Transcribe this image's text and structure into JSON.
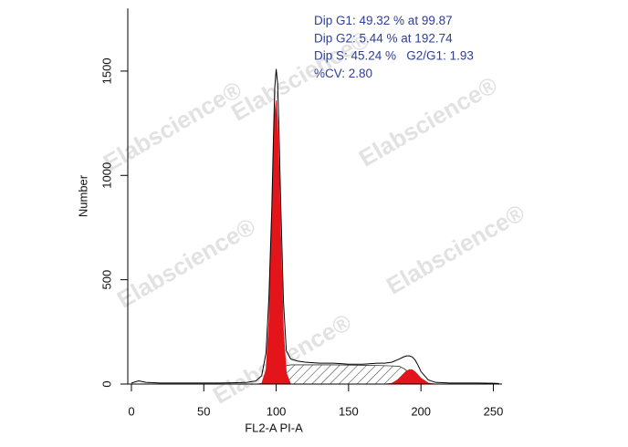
{
  "chart_data": {
    "type": "area",
    "xlabel": "FL2-A PI-A",
    "ylabel": "Number",
    "annotations": [
      "Dip G1: 49.32 % at 99.87",
      "Dip G2: 5.44 % at 192.74",
      "Dip S: 45.24 %   G2/G1: 1.93",
      "%CV: 2.80"
    ],
    "watermarks": [
      "Elabscience®",
      "Elabscience®",
      "Elabscience®",
      "Elabscience®",
      "Elabscience®",
      "Elabscience®"
    ],
    "xlim": [
      -2.5,
      256
    ],
    "ylim": [
      0,
      1800
    ],
    "xticks": [
      0,
      50,
      100,
      150,
      200,
      250
    ],
    "yticks": [
      0,
      500,
      1000,
      1500
    ],
    "x": [
      0,
      5,
      10,
      20,
      30,
      40,
      50,
      60,
      70,
      80,
      86,
      90,
      93,
      95,
      97,
      98,
      99,
      100,
      101,
      102,
      103,
      105,
      107,
      110,
      115,
      120,
      130,
      140,
      150,
      160,
      170,
      175,
      180,
      185,
      188,
      190,
      192,
      194,
      196,
      198,
      200,
      205,
      210,
      220,
      230,
      240,
      250,
      254
    ],
    "series": [
      {
        "style": "hatch",
        "color": "#333333",
        "values": [
          0,
          0,
          0,
          0,
          0,
          0,
          0,
          0,
          0,
          0,
          0,
          0,
          0,
          0,
          0,
          5,
          10,
          20,
          35,
          50,
          65,
          80,
          88,
          92,
          92,
          92,
          92,
          92,
          91,
          90,
          89,
          88,
          87,
          85,
          75,
          65,
          55,
          45,
          30,
          18,
          8,
          0,
          0,
          0,
          0,
          0,
          0,
          0
        ]
      },
      {
        "style": "fill",
        "color": "#e3151a",
        "values": [
          0,
          0,
          0,
          0,
          0,
          0,
          0,
          0,
          0,
          0,
          0,
          3,
          67,
          300,
          805,
          1088,
          1296,
          1360,
          1253,
          1018,
          728,
          254,
          53,
          0,
          0,
          0,
          0,
          0,
          0,
          0,
          0,
          0,
          0,
          0,
          0,
          0,
          0,
          0,
          0,
          0,
          0,
          0,
          0,
          0,
          0,
          0,
          0,
          0
        ]
      },
      {
        "style": "fill",
        "color": "#e3151a",
        "values": [
          0,
          0,
          0,
          0,
          0,
          0,
          0,
          0,
          0,
          0,
          0,
          0,
          0,
          0,
          0,
          0,
          0,
          0,
          0,
          0,
          0,
          0,
          0,
          0,
          0,
          0,
          0,
          0,
          0,
          0,
          0,
          0,
          4,
          25,
          48,
          61,
          69,
          68,
          58,
          43,
          28,
          5,
          0,
          0,
          0,
          0,
          0,
          0
        ]
      },
      {
        "style": "line",
        "color": "#000000",
        "values": [
          5,
          15,
          8,
          5,
          5,
          5,
          5,
          5,
          6,
          8,
          15,
          40,
          150,
          420,
          850,
          1150,
          1420,
          1510,
          1440,
          1200,
          900,
          400,
          160,
          120,
          110,
          105,
          100,
          100,
          95,
          95,
          100,
          100,
          105,
          120,
          130,
          135,
          135,
          130,
          115,
          90,
          60,
          20,
          8,
          5,
          5,
          5,
          4,
          3
        ]
      }
    ]
  }
}
